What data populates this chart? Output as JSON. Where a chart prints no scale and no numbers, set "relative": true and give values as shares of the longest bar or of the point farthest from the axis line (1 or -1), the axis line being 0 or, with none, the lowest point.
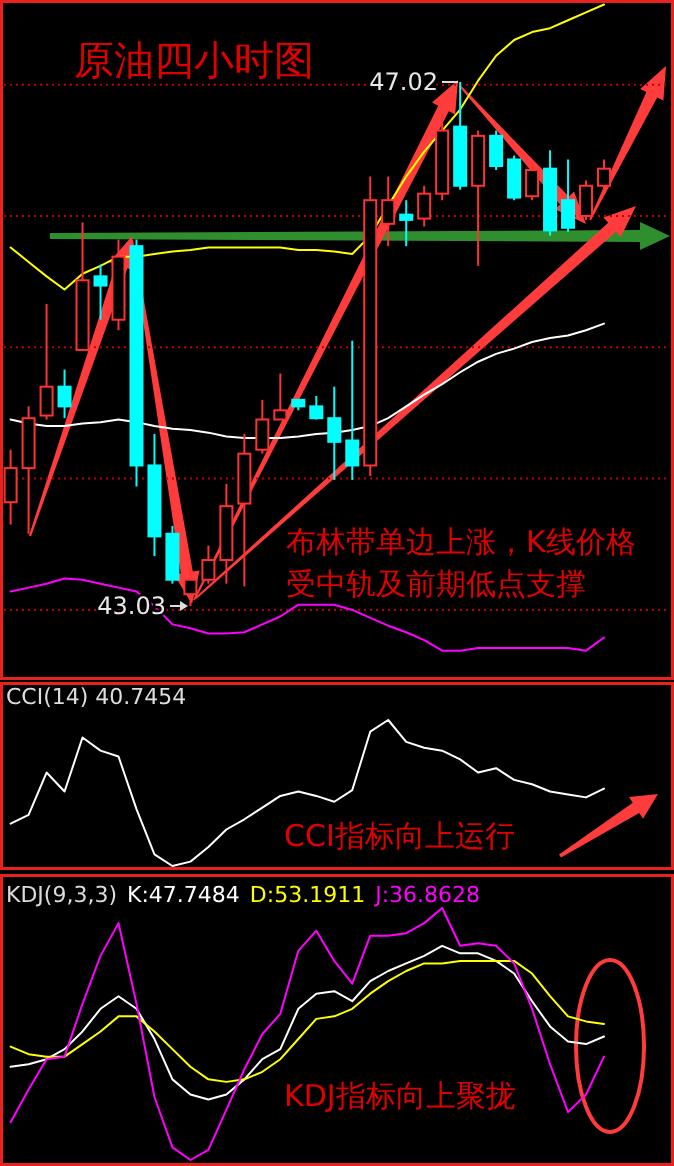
{
  "chart_data": [
    {
      "type": "candlestick",
      "title": "原油四小时图",
      "categories": [
        null,
        null,
        null,
        null,
        null,
        null,
        null,
        null,
        null,
        null,
        null,
        null,
        null,
        null,
        null,
        null,
        null,
        null,
        null,
        null,
        null,
        null,
        null,
        null,
        null,
        null,
        null,
        null,
        null,
        null,
        null,
        null,
        null,
        null
      ],
      "ohlc": [
        [
          43.82,
          44.22,
          43.65,
          44.08
        ],
        [
          44.08,
          44.55,
          43.58,
          44.46
        ],
        [
          44.48,
          45.33,
          44.45,
          44.7
        ],
        [
          44.7,
          44.83,
          44.46,
          44.55
        ],
        [
          44.98,
          45.95,
          44.98,
          45.51
        ],
        [
          45.54,
          45.63,
          45.21,
          45.47
        ],
        [
          45.21,
          45.82,
          45.13,
          45.69
        ],
        [
          45.77,
          45.82,
          43.94,
          44.1
        ],
        [
          44.1,
          44.34,
          43.41,
          43.56
        ],
        [
          43.58,
          43.64,
          43.2,
          43.23
        ],
        [
          43.12,
          43.33,
          43.03,
          43.23
        ],
        [
          43.23,
          43.49,
          43.2,
          43.38
        ],
        [
          43.38,
          43.96,
          43.2,
          43.79
        ],
        [
          43.81,
          44.34,
          43.18,
          44.19
        ],
        [
          44.22,
          44.6,
          44.19,
          44.45
        ],
        [
          44.45,
          44.8,
          44.45,
          44.52
        ],
        [
          44.6,
          44.6,
          44.52,
          44.55
        ],
        [
          44.55,
          44.63,
          44.45,
          44.46
        ],
        [
          44.46,
          44.7,
          43.99,
          44.28
        ],
        [
          44.29,
          45.05,
          43.99,
          44.1
        ],
        [
          44.1,
          46.3,
          44.02,
          46.12
        ],
        [
          45.94,
          46.3,
          45.77,
          46.12
        ],
        [
          46.01,
          46.12,
          45.77,
          45.97
        ],
        [
          45.98,
          46.23,
          45.92,
          46.17
        ],
        [
          46.17,
          46.78,
          46.12,
          46.65
        ],
        [
          46.68,
          47.02,
          46.2,
          46.23
        ],
        [
          46.23,
          46.65,
          45.62,
          46.61
        ],
        [
          46.61,
          46.65,
          46.35,
          46.38
        ],
        [
          46.43,
          46.46,
          46.12,
          46.14
        ],
        [
          46.15,
          46.4,
          46.12,
          46.35
        ],
        [
          46.36,
          46.5,
          45.85,
          45.89
        ],
        [
          46.12,
          46.43,
          45.88,
          45.91
        ],
        [
          46.0,
          46.27,
          45.97,
          46.23
        ],
        [
          46.23,
          46.43,
          46.2,
          46.36
        ]
      ],
      "series": [
        {
          "type": "line",
          "color": "#ffff00",
          "values": [
            45.76,
            45.65,
            45.54,
            45.44,
            45.56,
            45.62,
            45.69,
            45.69,
            45.71,
            45.73,
            45.74,
            45.76,
            45.76,
            45.76,
            45.76,
            45.76,
            45.74,
            45.74,
            45.73,
            45.71,
            45.85,
            46.08,
            46.3,
            46.49,
            46.65,
            46.81,
            47.03,
            47.22,
            47.34,
            47.4,
            47.43,
            47.49,
            47.55,
            47.61
          ]
        },
        {
          "type": "line",
          "color": "#ffffff",
          "values": [
            44.45,
            44.42,
            44.4,
            44.4,
            44.42,
            44.43,
            44.45,
            44.43,
            44.4,
            44.38,
            44.37,
            44.35,
            44.32,
            44.31,
            44.31,
            44.31,
            44.32,
            44.34,
            44.35,
            44.37,
            44.4,
            44.46,
            44.55,
            44.64,
            44.72,
            44.81,
            44.89,
            44.95,
            44.99,
            45.04,
            45.07,
            45.09,
            45.13,
            45.18
          ]
        },
        {
          "type": "line",
          "color": "#ff00ff",
          "values": [
            43.14,
            43.17,
            43.2,
            43.24,
            43.23,
            43.2,
            43.17,
            43.14,
            43.03,
            42.89,
            42.86,
            42.82,
            42.82,
            42.83,
            42.89,
            42.95,
            43.04,
            43.04,
            43.04,
            43.0,
            42.94,
            42.88,
            42.83,
            42.77,
            42.69,
            42.69,
            42.71,
            42.71,
            42.71,
            42.71,
            42.71,
            42.71,
            42.69,
            42.79
          ]
        }
      ],
      "yticks": [
        {
          "value": 43,
          "label": null
        },
        {
          "value": 44,
          "label": null
        },
        {
          "value": 45,
          "label": null
        },
        {
          "value": 46,
          "label": null
        },
        {
          "value": 47,
          "label": null
        }
      ],
      "grid": "y",
      "annotations": [
        "47.02",
        "43.03",
        "布林带单边上涨，K线价格受中轨及前期低点支撑"
      ]
    },
    {
      "type": "line",
      "title": "CCI(14) 40.7454",
      "relative": true,
      "categories": [
        null,
        null,
        null,
        null,
        null,
        null,
        null,
        null,
        null,
        null,
        null,
        null,
        null,
        null,
        null,
        null,
        null,
        null,
        null,
        null,
        null,
        null,
        null,
        null,
        null,
        null,
        null,
        null,
        null,
        null,
        null,
        null,
        null,
        null
      ],
      "series": [
        {
          "color": "#ffffff",
          "values": [
            0.29,
            0.35,
            0.64,
            0.51,
            0.88,
            0.79,
            0.75,
            0.39,
            0.08,
            0,
            0.03,
            0.13,
            0.25,
            0.32,
            0.4,
            0.48,
            0.51,
            0.48,
            0.44,
            0.52,
            0.92,
            1,
            0.85,
            0.81,
            0.79,
            0.73,
            0.64,
            0.67,
            0.59,
            0.56,
            0.51,
            0.49,
            0.47,
            0.53
          ]
        }
      ],
      "annotations": [
        "CCI指标向上运行"
      ]
    },
    {
      "type": "line",
      "title": "KDJ(9,3,3)",
      "relative": true,
      "legend": "top left",
      "categories": [
        null,
        null,
        null,
        null,
        null,
        null,
        null,
        null,
        null,
        null,
        null,
        null,
        null,
        null,
        null,
        null,
        null,
        null,
        null,
        null,
        null,
        null,
        null,
        null,
        null,
        null,
        null,
        null,
        null,
        null,
        null,
        null,
        null,
        null
      ],
      "series": [
        {
          "name": "K:47.7484",
          "color": "#ffffff",
          "values": [
            0.37,
            0.38,
            0.4,
            0.44,
            0.51,
            0.6,
            0.65,
            0.6,
            0.48,
            0.32,
            0.26,
            0.24,
            0.26,
            0.32,
            0.4,
            0.44,
            0.6,
            0.66,
            0.67,
            0.63,
            0.71,
            0.75,
            0.78,
            0.81,
            0.85,
            0.82,
            0.82,
            0.79,
            0.74,
            0.63,
            0.53,
            0.47,
            0.46,
            0.49
          ]
        },
        {
          "name": "D:53.1911",
          "color": "#ffff00",
          "values": [
            0.45,
            0.42,
            0.41,
            0.41,
            0.46,
            0.51,
            0.57,
            0.57,
            0.51,
            0.44,
            0.37,
            0.32,
            0.31,
            0.32,
            0.35,
            0.4,
            0.48,
            0.56,
            0.57,
            0.6,
            0.66,
            0.71,
            0.75,
            0.78,
            0.78,
            0.79,
            0.79,
            0.79,
            0.79,
            0.74,
            0.65,
            0.57,
            0.55,
            0.54
          ]
        },
        {
          "name": "J:36.8628",
          "color": "#ff00ff",
          "values": [
            0.15,
            0.28,
            0.4,
            0.41,
            0.62,
            0.81,
            0.94,
            0.62,
            0.25,
            0.05,
            0,
            0.04,
            0.2,
            0.36,
            0.5,
            0.58,
            0.83,
            0.91,
            0.79,
            0.7,
            0.89,
            0.89,
            0.9,
            0.94,
            1,
            0.85,
            0.86,
            0.85,
            0.78,
            0.6,
            0.38,
            0.19,
            0.26,
            0.41
          ]
        }
      ],
      "annotations": [
        "KDJ指标向上聚拢"
      ]
    }
  ]
}
